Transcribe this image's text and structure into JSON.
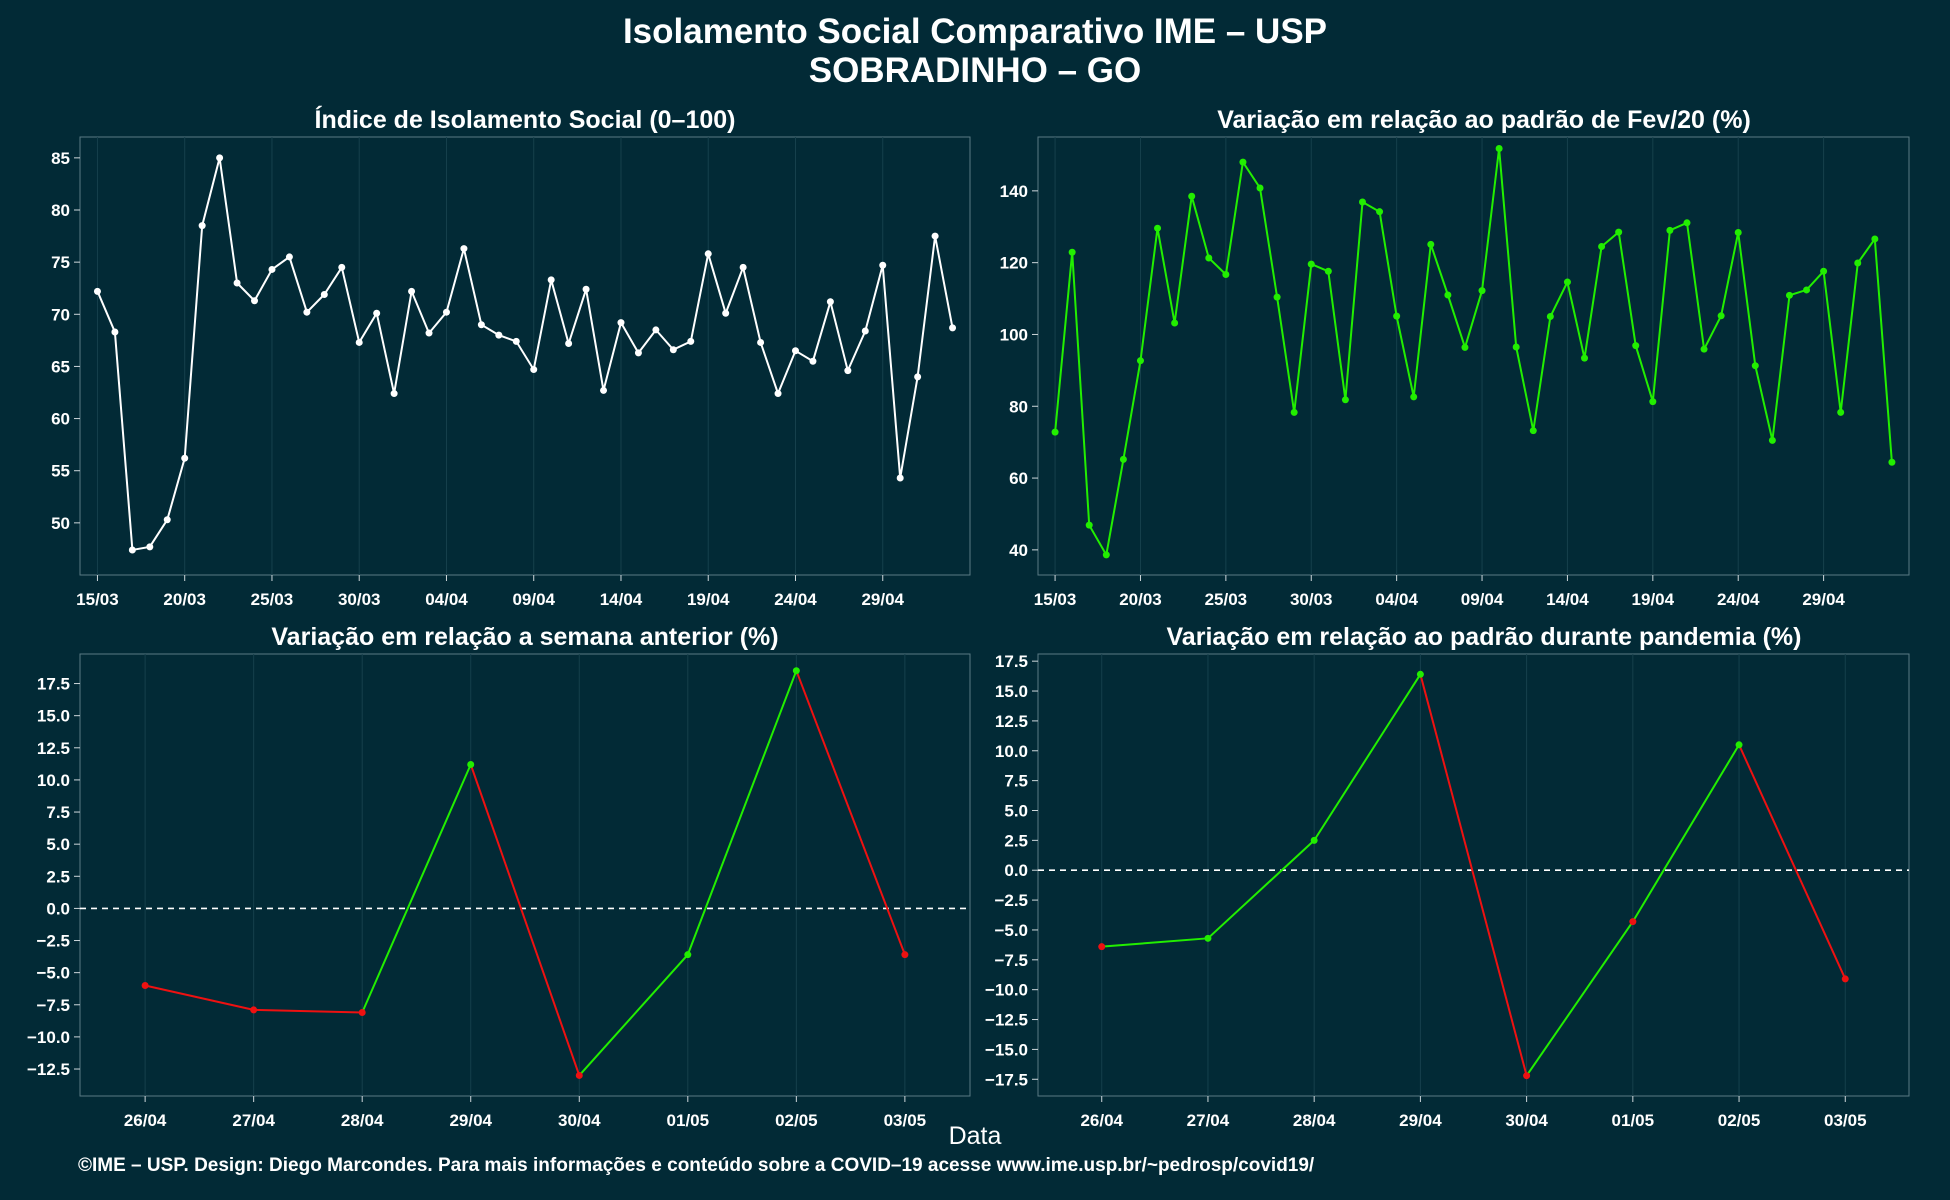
{
  "title_line1": "Isolamento Social Comparativo IME – USP",
  "title_line2": "SOBRADINHO – GO",
  "x_label": "Data",
  "footer": "©IME – USP. Design: Diego Marcondes. Para mais informações e conteúdo sobre a COVID–19 acesse www.ime.usp.br/~pedrosp/covid19/",
  "colors": {
    "background": "#022a36",
    "white_series": "#ffffff",
    "green": "#22ee00",
    "red": "#ee1111",
    "grid": "#16404c",
    "axis_text": "#ffffff"
  },
  "chart_data": [
    {
      "id": "isolation-index",
      "type": "line",
      "title": "Índice de Isolamento Social (0–100)",
      "color": "#ffffff",
      "xlim": [
        "2020-03-14",
        "2020-05-04"
      ],
      "ylim": [
        45,
        87
      ],
      "yticks": [
        50,
        55,
        60,
        65,
        70,
        75,
        80,
        85
      ],
      "xticks": [
        "15/03",
        "20/03",
        "25/03",
        "30/03",
        "04/04",
        "09/04",
        "14/04",
        "19/04",
        "24/04",
        "29/04"
      ],
      "xtick_dates": [
        "2020-03-15",
        "2020-03-20",
        "2020-03-25",
        "2020-03-30",
        "2020-04-04",
        "2020-04-09",
        "2020-04-14",
        "2020-04-19",
        "2020-04-24",
        "2020-04-29"
      ],
      "x_start": "2020-03-15",
      "values": [
        72.2,
        68.3,
        47.4,
        47.7,
        50.3,
        56.2,
        78.5,
        85.0,
        73.0,
        71.3,
        74.3,
        75.5,
        70.2,
        71.9,
        74.5,
        67.3,
        70.1,
        62.4,
        72.2,
        68.2,
        70.2,
        76.3,
        69.0,
        68.0,
        67.4,
        64.7,
        73.3,
        67.2,
        72.4,
        62.7,
        69.2,
        66.3,
        68.5,
        66.6,
        67.4,
        75.8,
        70.1,
        74.5,
        67.3,
        62.4,
        66.5,
        65.5,
        71.2,
        64.6,
        68.4,
        74.7,
        54.3,
        64.0,
        77.5,
        68.7
      ]
    },
    {
      "id": "variation-feb",
      "type": "line",
      "title": "Variação em relação ao padrão de Fev/20 (%)",
      "color": "#22ee00",
      "xlim": [
        "2020-03-14",
        "2020-05-04"
      ],
      "ylim": [
        33,
        155
      ],
      "yticks": [
        40,
        60,
        80,
        100,
        120,
        140
      ],
      "xticks": [
        "15/03",
        "20/03",
        "25/03",
        "30/03",
        "04/04",
        "09/04",
        "14/04",
        "19/04",
        "24/04",
        "29/04"
      ],
      "xtick_dates": [
        "2020-03-15",
        "2020-03-20",
        "2020-03-25",
        "2020-03-30",
        "2020-04-04",
        "2020-04-09",
        "2020-04-14",
        "2020-04-19",
        "2020-04-24",
        "2020-04-29"
      ],
      "x_start": "2020-03-15",
      "values": [
        72.8,
        122.9,
        46.9,
        38.6,
        65.2,
        92.7,
        129.6,
        103.2,
        138.5,
        121.3,
        116.7,
        148.0,
        140.8,
        110.4,
        78.3,
        119.6,
        117.6,
        81.8,
        136.9,
        134.2,
        105.1,
        82.6,
        125.1,
        111.0,
        96.4,
        112.2,
        151.8,
        96.5,
        73.2,
        105.0,
        114.6,
        93.4,
        124.5,
        128.5,
        96.9,
        81.3,
        129.0,
        131.1,
        95.9,
        105.2,
        128.4,
        91.3,
        70.5,
        110.9,
        112.4,
        117.6,
        78.3,
        119.9,
        126.6,
        64.4
      ]
    },
    {
      "id": "variation-week",
      "type": "line",
      "title": "Variação em relação a semana anterior (%)",
      "segment_colors": "green when rising, red when falling",
      "categories": [
        "26/04",
        "27/04",
        "28/04",
        "29/04",
        "30/04",
        "01/05",
        "02/05",
        "03/05"
      ],
      "values": [
        -6.0,
        -7.9,
        -8.1,
        11.2,
        -13.0,
        -3.6,
        18.5,
        -3.6
      ],
      "point_colors": [
        "red",
        "red",
        "red",
        "green",
        "red",
        "green",
        "green",
        "red"
      ],
      "ylim": [
        -14.6,
        19.8
      ],
      "yticks": [
        -12.5,
        -10.0,
        -7.5,
        -5.0,
        -2.5,
        0.0,
        2.5,
        5.0,
        7.5,
        10.0,
        12.5,
        15.0,
        17.5
      ],
      "ytick_labels": [
        "−12.5",
        "−10.0",
        "−7.5",
        "−5.0",
        "−2.5",
        "0.0",
        "2.5",
        "5.0",
        "7.5",
        "10.0",
        "12.5",
        "15.0",
        "17.5"
      ],
      "reference_line": 0
    },
    {
      "id": "variation-pandemic",
      "type": "line",
      "title": "Variação em relação ao padrão durante pandemia (%)",
      "segment_colors": "green when rising, red when falling",
      "categories": [
        "26/04",
        "27/04",
        "28/04",
        "29/04",
        "30/04",
        "01/05",
        "02/05",
        "03/05"
      ],
      "values": [
        -6.4,
        -5.7,
        2.5,
        16.4,
        -17.2,
        -4.3,
        10.5,
        -9.1
      ],
      "point_colors": [
        "red",
        "green",
        "green",
        "green",
        "red",
        "red",
        "green",
        "red"
      ],
      "ylim": [
        -18.9,
        18.1
      ],
      "yticks": [
        -17.5,
        -15.0,
        -12.5,
        -10.0,
        -7.5,
        -5.0,
        -2.5,
        0.0,
        2.5,
        5.0,
        7.5,
        10.0,
        12.5,
        15.0,
        17.5
      ],
      "ytick_labels": [
        "−17.5",
        "−15.0",
        "−12.5",
        "−10.0",
        "−7.5",
        "−5.0",
        "−2.5",
        "0.0",
        "2.5",
        "5.0",
        "7.5",
        "10.0",
        "12.5",
        "15.0",
        "17.5"
      ],
      "reference_line": 0
    }
  ]
}
